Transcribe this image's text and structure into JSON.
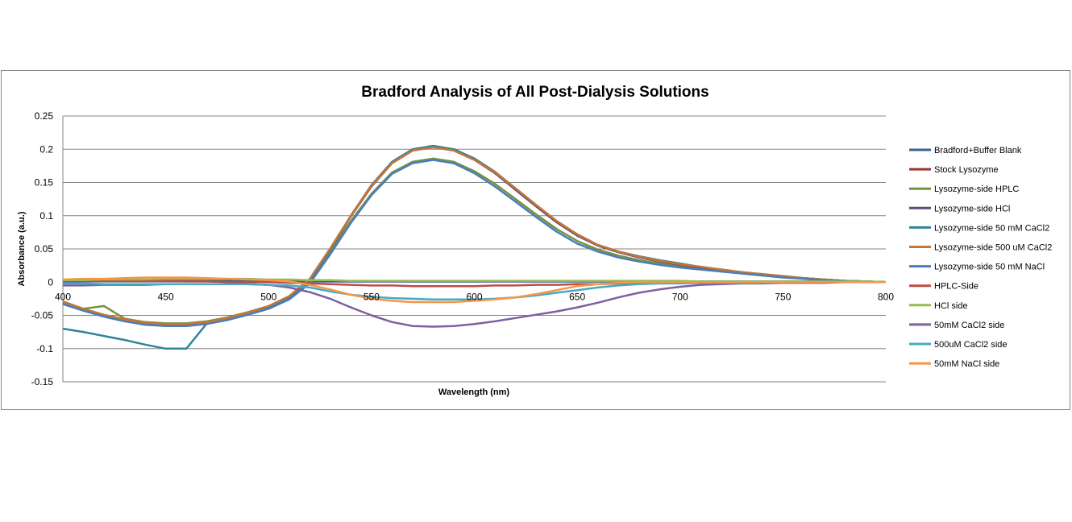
{
  "chart_data": {
    "type": "line",
    "title": "Bradford Analysis of All Post-Dialysis Solutions",
    "xlabel": "Wavelength (nm)",
    "ylabel": "Absorbance (a.u.)",
    "xlim": [
      400,
      800
    ],
    "ylim": [
      -0.15,
      0.25
    ],
    "xticks": [
      400,
      450,
      500,
      550,
      600,
      650,
      700,
      750,
      800
    ],
    "yticks": [
      0.25,
      0.2,
      0.15,
      0.1,
      0.05,
      0,
      -0.05,
      -0.1,
      -0.15
    ],
    "ytick_labels": [
      "0.25",
      "0.2",
      "0.15",
      "0.1",
      "0.05",
      "0",
      "-0.05",
      "-0.1",
      "-0.15"
    ],
    "grid": "horizontal",
    "legend": "right",
    "x": [
      400,
      410,
      420,
      430,
      440,
      450,
      460,
      470,
      480,
      490,
      500,
      510,
      520,
      530,
      540,
      550,
      560,
      570,
      580,
      590,
      600,
      610,
      620,
      630,
      640,
      650,
      660,
      670,
      680,
      690,
      700,
      710,
      720,
      730,
      740,
      750,
      760,
      770,
      780,
      790,
      800
    ],
    "series": [
      {
        "name": "Bradford+Buffer Blank",
        "color": "#3a6394",
        "values": [
          0.001,
          0.001,
          0.002,
          0.002,
          0.002,
          0.002,
          0.002,
          0.002,
          0.002,
          0.002,
          0.002,
          0.002,
          0.001,
          0.001,
          0.001,
          0.001,
          0.001,
          0.001,
          0.001,
          0.001,
          0.001,
          0.001,
          0.001,
          0.001,
          0.001,
          0.001,
          0.001,
          0.001,
          0.001,
          0.001,
          0.001,
          0.001,
          0.001,
          0.001,
          0.001,
          0.001,
          0.001,
          0.001,
          0.001,
          0.001,
          0.0
        ]
      },
      {
        "name": "Stock Lysozyme",
        "color": "#953735",
        "values": [
          -0.031,
          -0.041,
          -0.05,
          -0.057,
          -0.062,
          -0.064,
          -0.064,
          -0.061,
          -0.055,
          -0.047,
          -0.037,
          -0.022,
          0.004,
          0.05,
          0.1,
          0.146,
          0.181,
          0.2,
          0.205,
          0.2,
          0.186,
          0.166,
          0.141,
          0.116,
          0.092,
          0.072,
          0.056,
          0.046,
          0.038,
          0.032,
          0.027,
          0.023,
          0.019,
          0.015,
          0.012,
          0.009,
          0.006,
          0.004,
          0.002,
          0.001,
          0.0
        ]
      },
      {
        "name": "Lysozyme-side HPLC",
        "color": "#76923c",
        "values": [
          -0.029,
          -0.04,
          -0.036,
          -0.055,
          -0.06,
          -0.062,
          -0.062,
          -0.059,
          -0.053,
          -0.045,
          -0.036,
          -0.022,
          0.003,
          0.046,
          0.092,
          0.133,
          0.165,
          0.181,
          0.186,
          0.181,
          0.167,
          0.148,
          0.125,
          0.102,
          0.08,
          0.062,
          0.049,
          0.04,
          0.033,
          0.028,
          0.024,
          0.02,
          0.017,
          0.013,
          0.01,
          0.008,
          0.005,
          0.003,
          0.002,
          0.001,
          0.0
        ]
      },
      {
        "name": "Lysozyme-side HCl",
        "color": "#5f497a",
        "values": [
          -0.032,
          -0.042,
          -0.051,
          -0.058,
          -0.063,
          -0.065,
          -0.065,
          -0.062,
          -0.056,
          -0.048,
          -0.038,
          -0.023,
          0.003,
          0.049,
          0.099,
          0.144,
          0.179,
          0.198,
          0.203,
          0.198,
          0.184,
          0.164,
          0.139,
          0.114,
          0.09,
          0.07,
          0.055,
          0.045,
          0.037,
          0.031,
          0.026,
          0.022,
          0.018,
          0.014,
          0.011,
          0.008,
          0.006,
          0.004,
          0.002,
          0.001,
          0.0
        ]
      },
      {
        "name": "Lysozyme-side 50 mM CaCl2",
        "color": "#31849b",
        "values": [
          -0.07,
          -0.075,
          -0.081,
          -0.087,
          -0.094,
          -0.1,
          -0.1,
          -0.062,
          -0.056,
          -0.048,
          -0.038,
          -0.023,
          0.002,
          0.049,
          0.1,
          0.146,
          0.181,
          0.2,
          0.205,
          0.2,
          0.186,
          0.166,
          0.141,
          0.116,
          0.092,
          0.072,
          0.056,
          0.046,
          0.039,
          0.033,
          0.028,
          0.023,
          0.019,
          0.015,
          0.012,
          0.009,
          0.006,
          0.004,
          0.002,
          0.001,
          0.0
        ]
      },
      {
        "name": "Lysozyme-side 500 uM CaCl2",
        "color": "#c87533",
        "values": [
          -0.03,
          -0.04,
          -0.049,
          -0.056,
          -0.061,
          -0.063,
          -0.063,
          -0.06,
          -0.054,
          -0.046,
          -0.036,
          -0.021,
          0.005,
          0.051,
          0.1,
          0.145,
          0.179,
          0.198,
          0.203,
          0.198,
          0.184,
          0.165,
          0.141,
          0.116,
          0.092,
          0.072,
          0.056,
          0.046,
          0.038,
          0.032,
          0.027,
          0.023,
          0.019,
          0.015,
          0.012,
          0.009,
          0.006,
          0.004,
          0.002,
          0.001,
          0.0
        ]
      },
      {
        "name": "Lysozyme-side 50 mM NaCl",
        "color": "#4a7ebb",
        "values": [
          -0.033,
          -0.043,
          -0.052,
          -0.059,
          -0.064,
          -0.066,
          -0.066,
          -0.063,
          -0.057,
          -0.049,
          -0.04,
          -0.026,
          -0.002,
          0.042,
          0.089,
          0.131,
          0.163,
          0.179,
          0.184,
          0.179,
          0.164,
          0.144,
          0.121,
          0.098,
          0.076,
          0.058,
          0.046,
          0.037,
          0.031,
          0.026,
          0.022,
          0.019,
          0.016,
          0.013,
          0.01,
          0.007,
          0.005,
          0.003,
          0.002,
          0.001,
          0.0
        ]
      },
      {
        "name": "HPLC-Side",
        "color": "#be4b48",
        "values": [
          0.002,
          0.002,
          0.002,
          0.002,
          0.002,
          0.002,
          0.001,
          0.001,
          0.0,
          0.0,
          0.0,
          -0.001,
          -0.002,
          -0.003,
          -0.004,
          -0.005,
          -0.005,
          -0.006,
          -0.006,
          -0.006,
          -0.006,
          -0.005,
          -0.005,
          -0.004,
          -0.004,
          -0.003,
          -0.003,
          -0.002,
          -0.002,
          -0.001,
          -0.001,
          -0.001,
          -0.001,
          0.0,
          0.0,
          0.0,
          0.0,
          0.0,
          0.0,
          0.0,
          0.0
        ]
      },
      {
        "name": "HCl side",
        "color": "#98b954",
        "values": [
          0.003,
          0.003,
          0.004,
          0.004,
          0.004,
          0.005,
          0.005,
          0.005,
          0.005,
          0.005,
          0.004,
          0.004,
          0.003,
          0.003,
          0.002,
          0.002,
          0.002,
          0.002,
          0.002,
          0.002,
          0.002,
          0.002,
          0.002,
          0.002,
          0.002,
          0.002,
          0.002,
          0.002,
          0.002,
          0.002,
          0.002,
          0.001,
          0.001,
          0.001,
          0.001,
          0.001,
          0.001,
          0.001,
          0.001,
          0.001,
          0.0
        ]
      },
      {
        "name": "50mM CaCl2 side",
        "color": "#7d60a0",
        "values": [
          -0.005,
          -0.005,
          -0.004,
          -0.004,
          -0.004,
          -0.003,
          -0.003,
          -0.003,
          -0.003,
          -0.003,
          -0.004,
          -0.008,
          -0.015,
          -0.025,
          -0.038,
          -0.05,
          -0.06,
          -0.066,
          -0.067,
          -0.066,
          -0.063,
          -0.059,
          -0.054,
          -0.049,
          -0.044,
          -0.038,
          -0.031,
          -0.023,
          -0.016,
          -0.011,
          -0.007,
          -0.004,
          -0.003,
          -0.002,
          -0.002,
          -0.001,
          -0.001,
          -0.001,
          0.0,
          0.0,
          0.0
        ]
      },
      {
        "name": "500uM CaCl2 side",
        "color": "#46aac5",
        "values": [
          -0.002,
          -0.002,
          -0.003,
          -0.003,
          -0.003,
          -0.003,
          -0.003,
          -0.003,
          -0.003,
          -0.003,
          -0.004,
          -0.005,
          -0.008,
          -0.014,
          -0.019,
          -0.022,
          -0.024,
          -0.025,
          -0.026,
          -0.026,
          -0.026,
          -0.025,
          -0.023,
          -0.02,
          -0.016,
          -0.012,
          -0.008,
          -0.005,
          -0.003,
          -0.002,
          -0.002,
          -0.001,
          -0.001,
          -0.001,
          -0.001,
          0.0,
          0.0,
          0.0,
          0.0,
          0.0,
          0.0
        ]
      },
      {
        "name": "50mM NaCl side",
        "color": "#f79646",
        "values": [
          0.004,
          0.005,
          0.005,
          0.006,
          0.007,
          0.007,
          0.007,
          0.006,
          0.005,
          0.004,
          0.003,
          0.001,
          -0.004,
          -0.011,
          -0.019,
          -0.025,
          -0.028,
          -0.03,
          -0.03,
          -0.03,
          -0.028,
          -0.026,
          -0.023,
          -0.018,
          -0.012,
          -0.006,
          -0.003,
          -0.001,
          0.0,
          0.0,
          0.0,
          0.0,
          0.0,
          0.0,
          0.0,
          0.0,
          0.0,
          0.0,
          0.0,
          0.0,
          0.0
        ]
      }
    ]
  }
}
